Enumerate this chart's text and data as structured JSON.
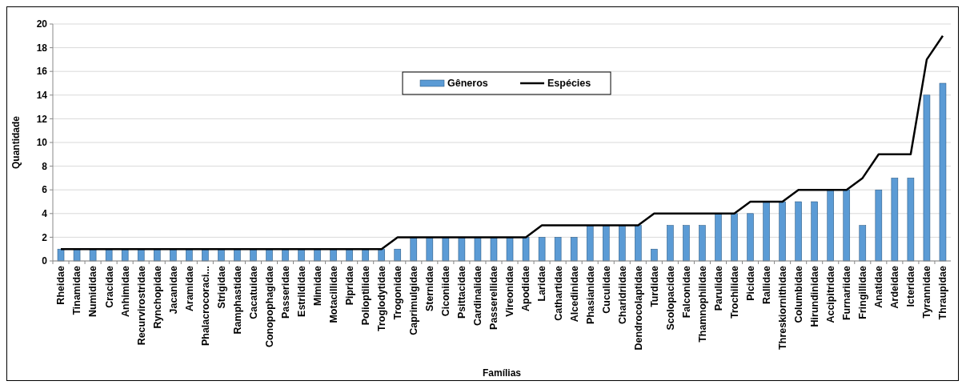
{
  "chart_data": {
    "type": "bar",
    "xlabel": "Famílias",
    "ylabel": "Quantidade",
    "categories": [
      "Rheidae",
      "Tinamidae",
      "Numididae",
      "Cracidae",
      "Anhimidae",
      "Recurvirostridae",
      "Rynchopidae",
      "Jacanidae",
      "Aramidae",
      "Phalacrocoraci...",
      "Strigidae",
      "Ramphastidae",
      "Cacatuidae",
      "Conopophagidae",
      "Passeridae",
      "Estrildidae",
      "Mimidae",
      "Motacillidae",
      "Pipridae",
      "Polioptilidae",
      "Troglodytidae",
      "Trogonidae",
      "Caprimulgidae",
      "Sternidae",
      "Ciconiidae",
      "Psittacidae",
      "Cardinalidae",
      "Passerellidae",
      "Vireonidae",
      "Apodidae",
      "Laridae",
      "Cathartidae",
      "Alcedinidae",
      "Phasianidae",
      "Cuculidae",
      "Charidriidae",
      "Dendrocolaptidae",
      "Turdidae",
      "Scolopacidae",
      "Falconidae",
      "Thamnophilidae",
      "Parulidae",
      "Trochilidae",
      "Picidae",
      "Rallidae",
      "Threskiornithidae",
      "Columbidae",
      "Hirundinidae",
      "Accipitridae",
      "Furnariidae",
      "Fringillidae",
      "Anatidae",
      "Ardeidae",
      "Icteridae",
      "Tyrannidae",
      "Thraupidae"
    ],
    "series": [
      {
        "name": "Gêneros",
        "color": "#5b9bd5",
        "values": [
          1,
          1,
          1,
          1,
          1,
          1,
          1,
          1,
          1,
          1,
          1,
          1,
          1,
          1,
          1,
          1,
          1,
          1,
          1,
          1,
          1,
          1,
          2,
          2,
          2,
          2,
          2,
          2,
          2,
          2,
          2,
          2,
          2,
          3,
          3,
          3,
          3,
          1,
          3,
          3,
          3,
          4,
          4,
          4,
          5,
          5,
          5,
          5,
          6,
          6,
          3,
          6,
          7,
          7,
          14,
          15
        ]
      },
      {
        "name": "Espécies",
        "type": "line",
        "color": "#000000",
        "values": [
          1,
          1,
          1,
          1,
          1,
          1,
          1,
          1,
          1,
          1,
          1,
          1,
          1,
          1,
          1,
          1,
          1,
          1,
          1,
          1,
          1,
          2,
          2,
          2,
          2,
          2,
          2,
          2,
          2,
          2,
          3,
          3,
          3,
          3,
          3,
          3,
          3,
          4,
          4,
          4,
          4,
          4,
          4,
          5,
          5,
          5,
          6,
          6,
          6,
          6,
          7,
          9,
          9,
          9,
          17,
          19
        ]
      }
    ],
    "ylim": [
      0,
      20
    ],
    "yticks": [
      0,
      2,
      4,
      6,
      8,
      10,
      12,
      14,
      16,
      18,
      20
    ],
    "grid": "y",
    "legend": "top",
    "marker": "none",
    "line_style": "solid"
  }
}
